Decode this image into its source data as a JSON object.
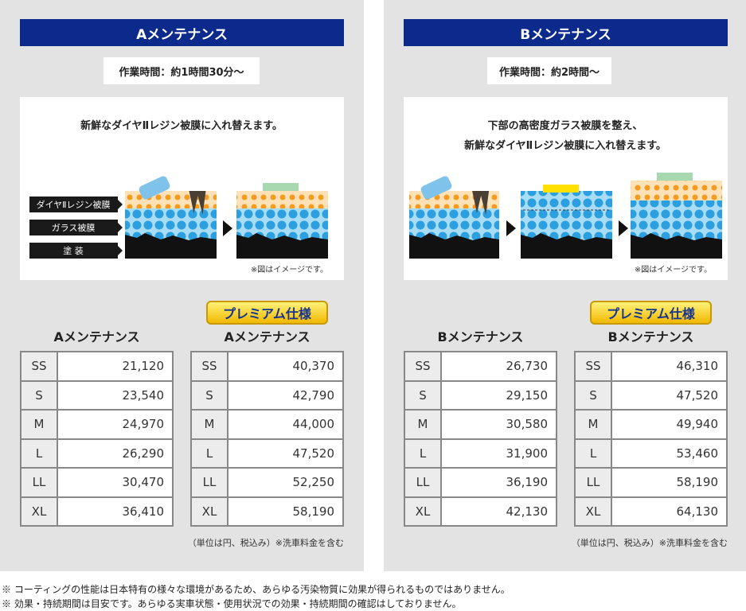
{
  "panels": [
    {
      "title": "Aメンテナンス",
      "time": "作業時間：約1時間30分～",
      "caption": [
        "新鮮なダイヤⅡレジン被膜に入れ替えます。"
      ],
      "layers": [
        "ダイヤⅡレジン被膜",
        "ガラス被膜",
        "塗 装"
      ],
      "image_note": "※図はイメージです。",
      "tables": [
        {
          "title": "Aメンテナンス",
          "rows": [
            [
              "SS",
              "21,120"
            ],
            [
              "S",
              "23,540"
            ],
            [
              "M",
              "24,970"
            ],
            [
              "L",
              "26,290"
            ],
            [
              "LL",
              "30,470"
            ],
            [
              "XL",
              "36,410"
            ]
          ]
        },
        {
          "badge": "プレミアム仕様",
          "title": "Aメンテナンス",
          "rows": [
            [
              "SS",
              "40,370"
            ],
            [
              "S",
              "42,790"
            ],
            [
              "M",
              "44,000"
            ],
            [
              "L",
              "47,520"
            ],
            [
              "LL",
              "52,250"
            ],
            [
              "XL",
              "58,190"
            ]
          ]
        }
      ],
      "unit_note": "（単位は円、税込み）※洗車料金を含む"
    },
    {
      "title": "Bメンテナンス",
      "time": "作業時間：約2時間～",
      "caption": [
        "下部の高密度ガラス被膜を整え、",
        "新鮮なダイヤⅡレジン被膜に入れ替えます。"
      ],
      "image_note": "※図はイメージです。",
      "tables": [
        {
          "title": "Bメンテナンス",
          "rows": [
            [
              "SS",
              "26,730"
            ],
            [
              "S",
              "29,150"
            ],
            [
              "M",
              "30,580"
            ],
            [
              "L",
              "31,900"
            ],
            [
              "LL",
              "36,190"
            ],
            [
              "XL",
              "42,130"
            ]
          ]
        },
        {
          "badge": "プレミアム仕様",
          "title": "Bメンテナンス",
          "rows": [
            [
              "SS",
              "46,310"
            ],
            [
              "S",
              "47,520"
            ],
            [
              "M",
              "49,940"
            ],
            [
              "L",
              "53,460"
            ],
            [
              "LL",
              "58,190"
            ],
            [
              "XL",
              "64,130"
            ]
          ]
        }
      ],
      "unit_note": "（単位は円、税込み）※洗車料金を含む"
    }
  ],
  "footer": [
    "※ コーティングの性能は日本特有の様々な環境があるため、あらゆる汚染物質に効果が得られるものではありません。",
    "※ 効果・持続期間は目安です。あらゆる実車状態・使用状況での効果・持続期間の確認はしておりません。"
  ]
}
